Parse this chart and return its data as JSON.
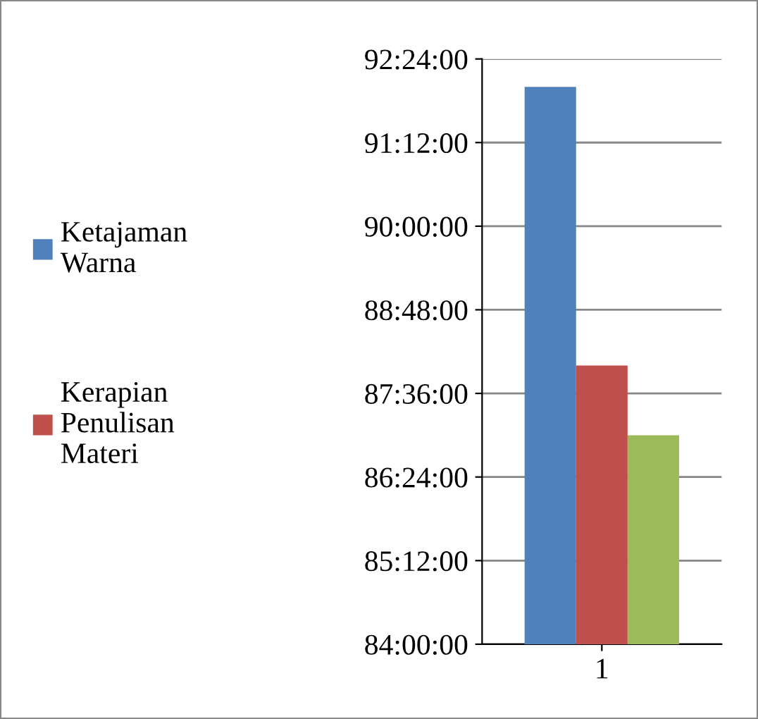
{
  "chart_data": {
    "type": "bar",
    "categories": [
      "1"
    ],
    "series": [
      {
        "name": "Ketajaman Warna",
        "color": "#4f81bd",
        "values": [
          92.0
        ]
      },
      {
        "name": "Kerapian Penulisan Materi",
        "color": "#c0504d",
        "values": [
          88.0
        ]
      },
      {
        "color": "#9bbb59",
        "values": [
          87.0
        ]
      }
    ],
    "ylim": [
      84,
      92.4
    ],
    "yticks": [
      {
        "value": 84,
        "label": "84:00:00"
      },
      {
        "value": 85.2,
        "label": "85:12:00"
      },
      {
        "value": 86.4,
        "label": "86:24:00"
      },
      {
        "value": 87.6,
        "label": "87:36:00"
      },
      {
        "value": 88.8,
        "label": "88:48:00"
      },
      {
        "value": 90,
        "label": "90:00:00"
      },
      {
        "value": 91.2,
        "label": "91:12:00"
      },
      {
        "value": 92.4,
        "label": "92:24:00"
      }
    ],
    "grid": "y",
    "legend": "left"
  }
}
